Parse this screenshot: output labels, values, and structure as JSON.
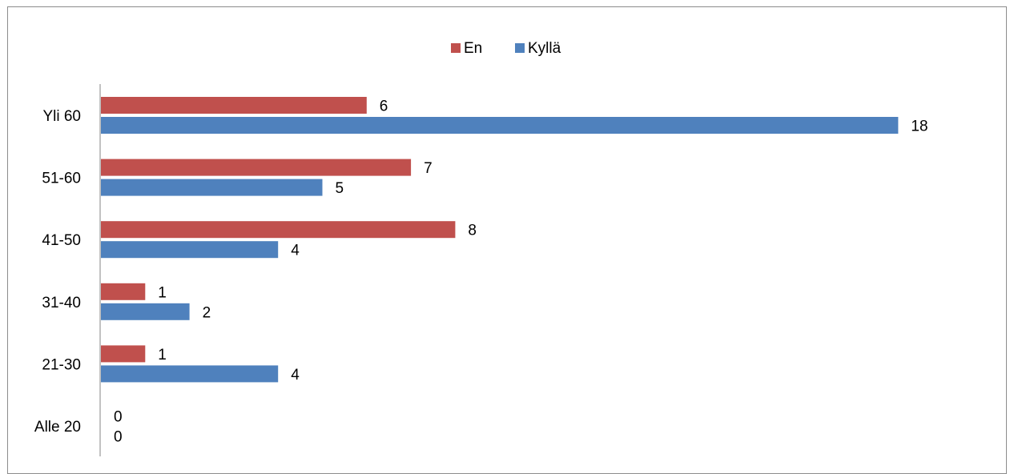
{
  "chart_data": {
    "type": "bar",
    "orientation": "horizontal",
    "categories": [
      "Yli 60",
      "51-60",
      "41-50",
      "31-40",
      "21-30",
      "Alle 20"
    ],
    "series": [
      {
        "name": "En",
        "color": "#c0504d",
        "values": [
          6,
          7,
          8,
          1,
          1,
          0
        ]
      },
      {
        "name": "Kyllä",
        "color": "#4f81bd",
        "values": [
          18,
          5,
          4,
          2,
          4,
          0
        ]
      }
    ],
    "xlim": [
      0,
      18
    ],
    "data_labels": true,
    "grid": false,
    "legend_position": "top"
  }
}
